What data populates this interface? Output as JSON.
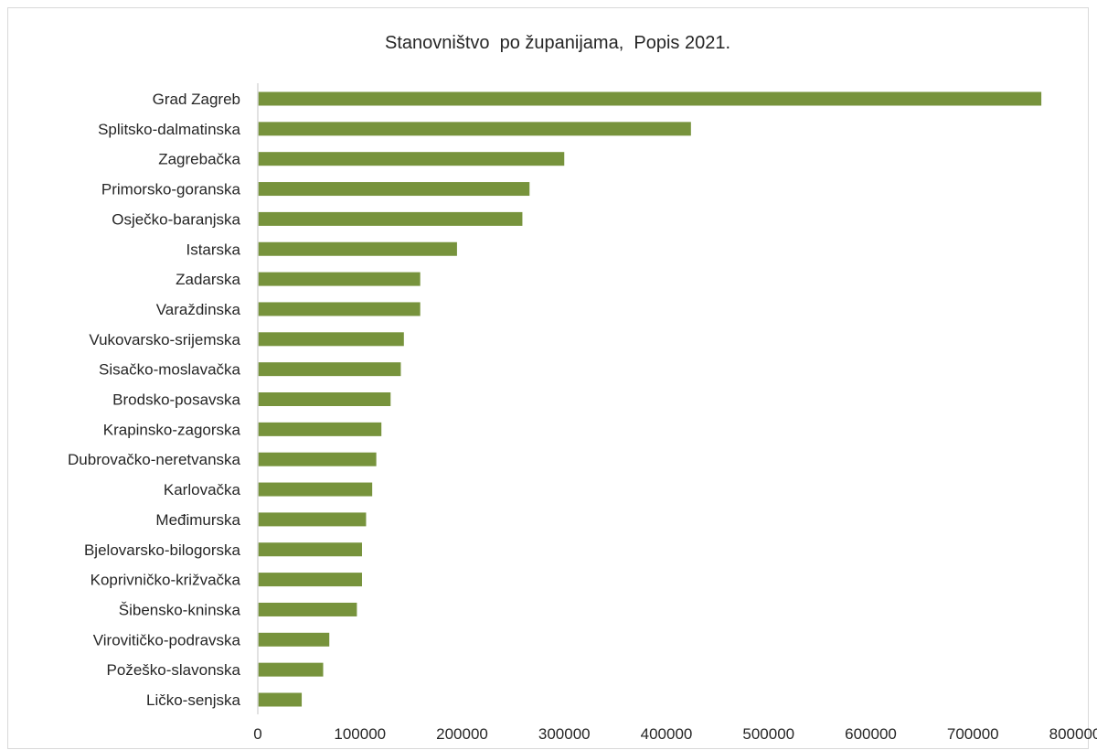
{
  "chart_data": {
    "type": "bar",
    "orientation": "horizontal",
    "title": "Stanovništvo  po županijama,  Popis 2021.",
    "xlabel": "",
    "ylabel": "",
    "categories": [
      "Grad Zagreb",
      "Splitsko-dalmatinska",
      "Zagrebačka",
      "Primorsko-goranska",
      "Osječko-baranjska",
      "Istarska",
      "Zadarska",
      "Varaždinska",
      "Vukovarsko-srijemska",
      "Sisačko-moslavačka",
      "Brodsko-posavska",
      "Krapinsko-zagorska",
      "Dubrovačko-neretvanska",
      "Karlovačka",
      "Međimurska",
      "Bjelovarsko-bilogorska",
      "Koprivničko-križvačka",
      "Šibensko-kninska",
      "Virovitičko-podravska",
      "Požeško-slavonska",
      "Ličko-senjska"
    ],
    "values": [
      767000,
      424000,
      300000,
      266000,
      259000,
      195000,
      159000,
      159000,
      143000,
      140000,
      130000,
      121000,
      116000,
      112000,
      106000,
      102000,
      102000,
      97000,
      70000,
      64000,
      43000
    ],
    "xlim": [
      0,
      800000
    ],
    "xticks": [
      "0",
      "100000",
      "200000",
      "300000",
      "400000",
      "500000",
      "600000",
      "700000",
      "800000"
    ],
    "grid": false,
    "legend": "none",
    "bar_color": "#77933c",
    "axis_color": "#d9d9d9"
  }
}
